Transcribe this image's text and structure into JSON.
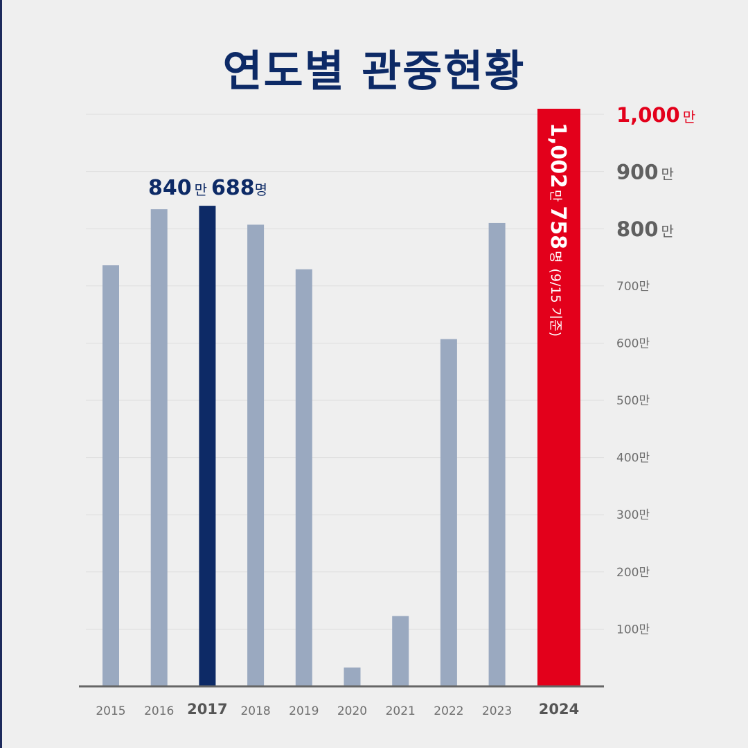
{
  "title": "연도별 관중현황",
  "colors": {
    "bar_default": "#9aa9c0",
    "bar_highlight": "#0d2a66",
    "bar_record": "#e3001b",
    "title": "#0d2a66",
    "background": "#efefef"
  },
  "chart_data": {
    "type": "bar",
    "title": "연도별 관중현황",
    "categories": [
      "2015",
      "2016",
      "2017",
      "2018",
      "2019",
      "2020",
      "2021",
      "2022",
      "2023",
      "2024"
    ],
    "values": [
      736,
      834,
      840.0688,
      807,
      729,
      33,
      123,
      607,
      810,
      1002.0758
    ],
    "unit": "만",
    "ylim": [
      0,
      1000
    ],
    "y_ticks": [
      "100만",
      "200만",
      "300만",
      "400만",
      "500만",
      "600만",
      "700만",
      "800만",
      "900만",
      "1,000만"
    ],
    "y_tick_values": [
      100,
      200,
      300,
      400,
      500,
      600,
      700,
      800,
      900,
      1000
    ],
    "grid": true,
    "highlight_categories": [
      "2017",
      "2024"
    ],
    "annotations": {
      "2017": {
        "num1": "840",
        "unit1": "만",
        "num2": "688",
        "unit2": "명"
      },
      "2024": {
        "num1": "1,002",
        "unit1": "만",
        "num2": "758",
        "unit2": "명",
        "note": "(9/15 기준)"
      }
    }
  }
}
